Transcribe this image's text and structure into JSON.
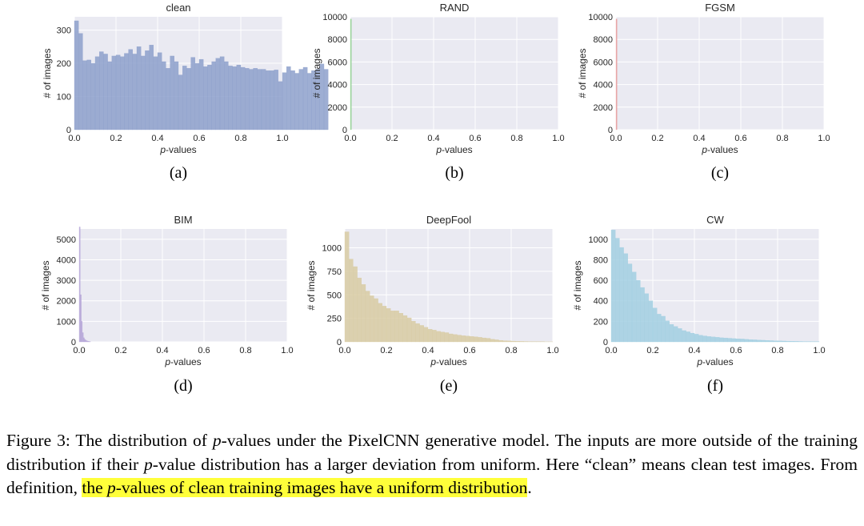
{
  "chart_data": [
    {
      "type": "histogram",
      "title": "clean",
      "xlabel_prefix": "p",
      "xlabel_suffix": "-values",
      "ylabel": "# of images",
      "xlim": [
        0,
        1
      ],
      "ylim": [
        0,
        340
      ],
      "xticks": [
        "0.0",
        "0.2",
        "0.4",
        "0.6",
        "0.8",
        "1.0"
      ],
      "yticks": [
        {
          "v": 0,
          "t": "0"
        },
        {
          "v": 100,
          "t": "100"
        },
        {
          "v": 200,
          "t": "200"
        },
        {
          "v": 300,
          "t": "300"
        }
      ],
      "bin_width": 0.02,
      "values": [
        328,
        290,
        208,
        210,
        200,
        220,
        235,
        228,
        205,
        222,
        225,
        220,
        230,
        242,
        228,
        250,
        222,
        238,
        255,
        220,
        232,
        205,
        185,
        222,
        205,
        165,
        192,
        185,
        218,
        200,
        212,
        190,
        195,
        205,
        215,
        220,
        205,
        192,
        190,
        195,
        188,
        185,
        182,
        185,
        182,
        182,
        178,
        178,
        180,
        145,
        172,
        190,
        178,
        170,
        182,
        188,
        170,
        178,
        182,
        198,
        182
      ],
      "color": "#8da0cb",
      "sublabel": "(a)"
    },
    {
      "type": "histogram",
      "title": "RAND",
      "xlabel_prefix": "p",
      "xlabel_suffix": "-values",
      "ylabel": "# of images",
      "xlim": [
        0,
        1
      ],
      "ylim": [
        0,
        10000
      ],
      "xticks": [
        "0.0",
        "0.2",
        "0.4",
        "0.6",
        "0.8",
        "1.0"
      ],
      "yticks": [
        {
          "v": 0,
          "t": "0"
        },
        {
          "v": 2000,
          "t": "2000"
        },
        {
          "v": 4000,
          "t": "4000"
        },
        {
          "v": 6000,
          "t": "6000"
        },
        {
          "v": 8000,
          "t": "8000"
        },
        {
          "v": 10000,
          "t": "10000"
        }
      ],
      "bin_width": 0.005,
      "values": [
        9800
      ],
      "color": "#8fcf8f",
      "sublabel": "(b)"
    },
    {
      "type": "histogram",
      "title": "FGSM",
      "xlabel_prefix": "p",
      "xlabel_suffix": "-values",
      "ylabel": "# of images",
      "xlim": [
        0,
        1
      ],
      "ylim": [
        0,
        10000
      ],
      "xticks": [
        "0.0",
        "0.2",
        "0.4",
        "0.6",
        "0.8",
        "1.0"
      ],
      "yticks": [
        {
          "v": 0,
          "t": "0"
        },
        {
          "v": 2000,
          "t": "2000"
        },
        {
          "v": 4000,
          "t": "4000"
        },
        {
          "v": 6000,
          "t": "6000"
        },
        {
          "v": 8000,
          "t": "8000"
        },
        {
          "v": 10000,
          "t": "10000"
        }
      ],
      "bin_width": 0.005,
      "values": [
        9800
      ],
      "color": "#e89a9a",
      "sublabel": "(c)"
    },
    {
      "type": "histogram",
      "title": "BIM",
      "xlabel_prefix": "p",
      "xlabel_suffix": "-values",
      "ylabel": "# of images",
      "xlim": [
        0,
        1
      ],
      "ylim": [
        0,
        5500
      ],
      "xticks": [
        "0.0",
        "0.2",
        "0.4",
        "0.6",
        "0.8",
        "1.0"
      ],
      "yticks": [
        {
          "v": 0,
          "t": "0"
        },
        {
          "v": 1000,
          "t": "1000"
        },
        {
          "v": 2000,
          "t": "2000"
        },
        {
          "v": 3000,
          "t": "3000"
        },
        {
          "v": 4000,
          "t": "4000"
        },
        {
          "v": 5000,
          "t": "5000"
        }
      ],
      "bin_width": 0.005,
      "values": [
        5600,
        2300,
        1000,
        450,
        200,
        120,
        80,
        50,
        30,
        20,
        10
      ],
      "color": "#b5a6d8",
      "sublabel": "(d)"
    },
    {
      "type": "histogram",
      "title": "DeepFool",
      "xlabel_prefix": "p",
      "xlabel_suffix": "-values",
      "ylabel": "# of images",
      "xlim": [
        0,
        1
      ],
      "ylim": [
        0,
        1200
      ],
      "xticks": [
        "0.0",
        "0.2",
        "0.4",
        "0.6",
        "0.8",
        "1.0"
      ],
      "yticks": [
        {
          "v": 0,
          "t": "0"
        },
        {
          "v": 250,
          "t": "250"
        },
        {
          "v": 500,
          "t": "500"
        },
        {
          "v": 750,
          "t": "750"
        },
        {
          "v": 1000,
          "t": "1000"
        }
      ],
      "bin_width": 0.02,
      "values": [
        1170,
        880,
        800,
        680,
        610,
        540,
        490,
        460,
        410,
        380,
        355,
        330,
        330,
        305,
        280,
        255,
        220,
        195,
        175,
        155,
        135,
        125,
        112,
        105,
        98,
        85,
        78,
        72,
        66,
        62,
        58,
        54,
        48,
        42,
        38,
        28,
        22,
        16,
        12,
        10,
        8,
        6,
        5,
        4,
        3,
        3,
        2,
        2,
        1,
        1
      ],
      "color": "#d8cba3",
      "sublabel": "(e)"
    },
    {
      "type": "histogram",
      "title": "CW",
      "xlabel_prefix": "p",
      "xlabel_suffix": "-values",
      "ylabel": "# of images",
      "xlim": [
        0,
        1
      ],
      "ylim": [
        0,
        1100
      ],
      "xticks": [
        "0.0",
        "0.2",
        "0.4",
        "0.6",
        "0.8",
        "1.0"
      ],
      "yticks": [
        {
          "v": 0,
          "t": "0"
        },
        {
          "v": 200,
          "t": "200"
        },
        {
          "v": 400,
          "t": "400"
        },
        {
          "v": 600,
          "t": "600"
        },
        {
          "v": 800,
          "t": "800"
        },
        {
          "v": 1000,
          "t": "1000"
        }
      ],
      "bin_width": 0.02,
      "values": [
        1090,
        1010,
        920,
        860,
        760,
        680,
        600,
        530,
        470,
        400,
        330,
        270,
        250,
        205,
        170,
        150,
        130,
        110,
        98,
        85,
        75,
        65,
        58,
        52,
        48,
        45,
        40,
        38,
        35,
        32,
        30,
        28,
        25,
        22,
        20,
        18,
        16,
        14,
        12,
        10,
        9,
        8,
        7,
        6,
        5,
        4,
        3,
        3,
        2,
        2
      ],
      "color": "#a2cfe2",
      "sublabel": "(f)"
    }
  ],
  "caption": {
    "part1": "Figure 3: The distribution of ",
    "p1": "p",
    "part2": "-values under the PixelCNN generative model. The inputs are more outside of the training distribution if their ",
    "p2": "p",
    "part3": "-value distribution has a larger deviation from uniform. Here “clean” means clean test images. From definition, ",
    "hl1": "the ",
    "p3": "p",
    "hl2": "-values of clean training images have a uniform distribution",
    "end": "."
  },
  "colors": {
    "panel_background": "#eaeaf2",
    "grid": "#ffffff",
    "highlight": "#ffff3a"
  }
}
